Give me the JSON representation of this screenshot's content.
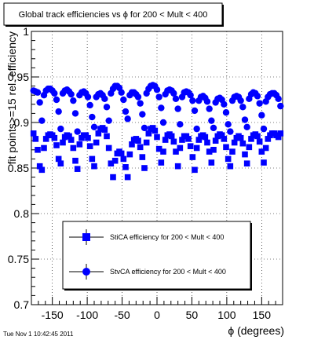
{
  "chart_data": {
    "type": "scatter",
    "title": "Global track efficiencies vs ϕ for 200 < Mult < 400",
    "xlabel": "ϕ (degrees)",
    "ylabel": "fit points>=15 rel. efficiency",
    "xlim": [
      -180,
      180
    ],
    "ylim": [
      0.7,
      1.0
    ],
    "x_ticks": [
      -150,
      -100,
      -50,
      0,
      50,
      100,
      150
    ],
    "x_tick_labels": [
      "-150",
      "-100",
      "-50",
      "0",
      "50",
      "100",
      "150"
    ],
    "y_ticks": [
      0.7,
      0.75,
      0.8,
      0.85,
      0.9,
      0.95,
      1.0
    ],
    "y_tick_labels": [
      "0.7",
      "0.75",
      "0.8",
      "0.85",
      "0.9",
      "0.95",
      "1"
    ],
    "grid": true,
    "legend_position": "bottom-center",
    "series": [
      {
        "name": "StvCA efficiency  for 200 < Mult < 400",
        "marker": "circle",
        "color": "#0000ff",
        "x": [
          -177,
          -174,
          -171,
          -168,
          -165,
          -162,
          -159,
          -156,
          -153,
          -150,
          -147,
          -144,
          -141,
          -138,
          -135,
          -132,
          -129,
          -126,
          -123,
          -120,
          -117,
          -114,
          -111,
          -108,
          -105,
          -102,
          -99,
          -96,
          -93,
          -90,
          -87,
          -84,
          -81,
          -78,
          -75,
          -72,
          -69,
          -66,
          -63,
          -60,
          -57,
          -54,
          -51,
          -48,
          -45,
          -42,
          -39,
          -36,
          -33,
          -30,
          -27,
          -24,
          -21,
          -18,
          -15,
          -12,
          -9,
          -6,
          -3,
          0,
          3,
          6,
          9,
          12,
          15,
          18,
          21,
          24,
          27,
          30,
          33,
          36,
          39,
          42,
          45,
          48,
          51,
          54,
          57,
          60,
          63,
          66,
          69,
          72,
          75,
          78,
          81,
          84,
          87,
          90,
          93,
          96,
          99,
          102,
          105,
          108,
          111,
          114,
          117,
          120,
          123,
          126,
          129,
          132,
          135,
          138,
          141,
          144,
          147,
          150,
          153,
          156,
          159,
          162,
          165,
          168,
          171,
          174,
          177
        ],
        "y": [
          0.935,
          0.934,
          0.933,
          0.922,
          0.902,
          0.93,
          0.935,
          0.937,
          0.937,
          0.935,
          0.932,
          0.925,
          0.912,
          0.893,
          0.932,
          0.935,
          0.936,
          0.934,
          0.931,
          0.924,
          0.91,
          0.89,
          0.93,
          0.933,
          0.934,
          0.932,
          0.928,
          0.919,
          0.906,
          0.895,
          0.928,
          0.931,
          0.932,
          0.93,
          0.926,
          0.917,
          0.902,
          0.932,
          0.937,
          0.94,
          0.94,
          0.938,
          0.933,
          0.925,
          0.912,
          0.904,
          0.93,
          0.933,
          0.933,
          0.931,
          0.928,
          0.921,
          0.909,
          0.894,
          0.932,
          0.937,
          0.94,
          0.941,
          0.94,
          0.936,
          0.928,
          0.916,
          0.9,
          0.931,
          0.935,
          0.936,
          0.935,
          0.932,
          0.926,
          0.915,
          0.898,
          0.928,
          0.933,
          0.934,
          0.933,
          0.93,
          0.924,
          0.913,
          0.893,
          0.924,
          0.928,
          0.929,
          0.927,
          0.923,
          0.915,
          0.902,
          0.894,
          0.922,
          0.926,
          0.927,
          0.925,
          0.92,
          0.911,
          0.898,
          0.89,
          0.924,
          0.928,
          0.929,
          0.928,
          0.924,
          0.917,
          0.903,
          0.895,
          0.926,
          0.931,
          0.933,
          0.932,
          0.929,
          0.921,
          0.908,
          0.893,
          0.923,
          0.928,
          0.931,
          0.932,
          0.932,
          0.93,
          0.926,
          0.918
        ]
      },
      {
        "name": "StiCA efficiency  for 200 < Mult < 400",
        "marker": "square",
        "color": "#0000ff",
        "x": [
          -177,
          -174,
          -171,
          -168,
          -165,
          -162,
          -159,
          -156,
          -153,
          -150,
          -147,
          -144,
          -141,
          -138,
          -135,
          -132,
          -129,
          -126,
          -123,
          -120,
          -117,
          -114,
          -111,
          -108,
          -105,
          -102,
          -99,
          -96,
          -93,
          -90,
          -87,
          -84,
          -81,
          -78,
          -75,
          -72,
          -69,
          -66,
          -63,
          -60,
          -57,
          -54,
          -51,
          -48,
          -45,
          -42,
          -39,
          -36,
          -33,
          -30,
          -27,
          -24,
          -21,
          -18,
          -15,
          -12,
          -9,
          -6,
          -3,
          0,
          3,
          6,
          9,
          12,
          15,
          18,
          21,
          24,
          27,
          30,
          33,
          36,
          39,
          42,
          45,
          48,
          51,
          54,
          57,
          60,
          63,
          66,
          69,
          72,
          75,
          78,
          81,
          84,
          87,
          90,
          93,
          96,
          99,
          102,
          105,
          108,
          111,
          114,
          117,
          120,
          123,
          126,
          129,
          132,
          135,
          138,
          141,
          144,
          147,
          150,
          153,
          156,
          159,
          162,
          165,
          168,
          171,
          174,
          177
        ],
        "y": [
          0.888,
          0.882,
          0.87,
          0.852,
          0.848,
          0.872,
          0.882,
          0.886,
          0.887,
          0.886,
          0.883,
          0.875,
          0.86,
          0.855,
          0.878,
          0.884,
          0.886,
          0.885,
          0.881,
          0.872,
          0.858,
          0.849,
          0.876,
          0.883,
          0.886,
          0.886,
          0.883,
          0.874,
          0.86,
          0.852,
          0.878,
          0.888,
          0.893,
          0.894,
          0.892,
          0.885,
          0.872,
          0.855,
          0.84,
          0.858,
          0.866,
          0.868,
          0.866,
          0.86,
          0.851,
          0.84,
          0.865,
          0.876,
          0.881,
          0.882,
          0.88,
          0.873,
          0.862,
          0.85,
          0.878,
          0.888,
          0.893,
          0.894,
          0.891,
          0.884,
          0.871,
          0.856,
          0.868,
          0.881,
          0.886,
          0.887,
          0.885,
          0.879,
          0.868,
          0.852,
          0.872,
          0.881,
          0.885,
          0.885,
          0.882,
          0.874,
          0.862,
          0.848,
          0.872,
          0.881,
          0.885,
          0.886,
          0.884,
          0.878,
          0.868,
          0.856,
          0.87,
          0.88,
          0.885,
          0.887,
          0.886,
          0.882,
          0.873,
          0.86,
          0.852,
          0.868,
          0.878,
          0.883,
          0.885,
          0.883,
          0.877,
          0.865,
          0.855,
          0.873,
          0.882,
          0.886,
          0.887,
          0.885,
          0.879,
          0.868,
          0.856,
          0.872,
          0.882,
          0.886,
          0.888,
          0.888,
          0.886,
          0.884,
          0.888
        ]
      }
    ],
    "legend": [
      {
        "label": "StiCA efficiency  for 200 < Mult < 400",
        "marker": "square"
      },
      {
        "label": "StvCA efficiency  for 200 < Mult < 400",
        "marker": "circle"
      }
    ]
  },
  "footer": {
    "timestamp": "Tue Nov  1 10:42:45 2011"
  }
}
